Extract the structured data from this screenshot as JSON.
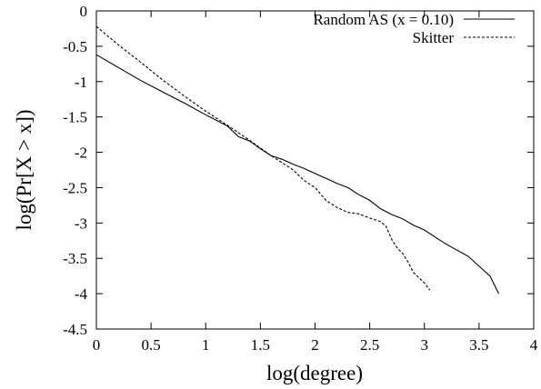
{
  "chart_data": {
    "type": "line",
    "title": "",
    "xlabel": "log(degree)",
    "ylabel": "log(Pr[X > x])",
    "xlim": [
      0,
      4
    ],
    "ylim": [
      -4.5,
      0
    ],
    "xticks": [
      0,
      0.5,
      1,
      1.5,
      2,
      2.5,
      3,
      3.5,
      4
    ],
    "xtick_labels": [
      "0",
      "0.5",
      "1",
      "1.5",
      "2",
      "2.5",
      "3",
      "3.5",
      "4"
    ],
    "yticks": [
      0,
      -0.5,
      -1,
      -1.5,
      -2,
      -2.5,
      -3,
      -3.5,
      -4,
      -4.5
    ],
    "ytick_labels": [
      "0",
      "-0.5",
      "-1",
      "-1.5",
      "-2",
      "-2.5",
      "-3",
      "-3.5",
      "-4",
      "-4.5"
    ],
    "grid": false,
    "legend_position": "top-right",
    "series": [
      {
        "name": "Random AS (x = 0.10)",
        "style": "solid",
        "color": "#000000",
        "x": [
          0,
          0.2,
          0.4,
          0.6,
          0.8,
          1.0,
          1.2,
          1.3,
          1.4,
          1.5,
          1.6,
          1.7,
          1.8,
          1.9,
          2.0,
          2.1,
          2.2,
          2.3,
          2.4,
          2.5,
          2.6,
          2.7,
          2.8,
          2.9,
          3.0,
          3.1,
          3.2,
          3.4,
          3.6,
          3.68
        ],
        "values": [
          -0.62,
          -0.8,
          -0.98,
          -1.14,
          -1.3,
          -1.47,
          -1.63,
          -1.78,
          -1.84,
          -1.95,
          -2.05,
          -2.1,
          -2.17,
          -2.23,
          -2.3,
          -2.37,
          -2.44,
          -2.5,
          -2.6,
          -2.68,
          -2.8,
          -2.88,
          -2.94,
          -3.03,
          -3.1,
          -3.2,
          -3.3,
          -3.47,
          -3.75,
          -4.0
        ]
      },
      {
        "name": "Skitter",
        "style": "dashed",
        "color": "#000000",
        "x": [
          0,
          0.2,
          0.4,
          0.6,
          0.8,
          1.0,
          1.2,
          1.4,
          1.6,
          1.7,
          1.8,
          1.9,
          2.0,
          2.1,
          2.2,
          2.3,
          2.4,
          2.5,
          2.6,
          2.65,
          2.7,
          2.75,
          2.8,
          2.85,
          2.9,
          3.0,
          3.05
        ],
        "values": [
          -0.22,
          -0.48,
          -0.72,
          -0.97,
          -1.2,
          -1.42,
          -1.62,
          -1.83,
          -2.05,
          -2.15,
          -2.25,
          -2.4,
          -2.5,
          -2.68,
          -2.78,
          -2.85,
          -2.87,
          -2.93,
          -2.98,
          -3.05,
          -3.23,
          -3.35,
          -3.43,
          -3.55,
          -3.7,
          -3.85,
          -3.95
        ]
      }
    ]
  }
}
